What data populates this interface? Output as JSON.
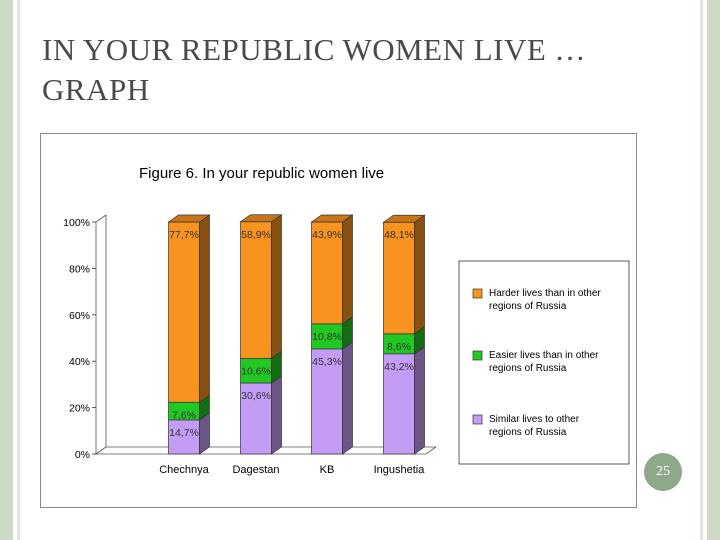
{
  "slide": {
    "title": "IN YOUR REPUBLIC WOMEN LIVE … GRAPH",
    "page_number": "25"
  },
  "colors": {
    "harder": "#f7931e",
    "easier": "#22c822",
    "similar": "#c39cf6",
    "frame": "#8a8a8a",
    "accent_circle": "#8fa78a"
  },
  "chart_data": {
    "type": "bar",
    "stacked": true,
    "percent_stacked": true,
    "three_d": true,
    "title": "Figure 6. In your republic women live",
    "categories": [
      "Chechnya",
      "Dagestan",
      "KB",
      "Ingushetia"
    ],
    "series": [
      {
        "name": "Similar lives to other regions of Russia",
        "color": "#c39cf6",
        "values": [
          14.7,
          30.6,
          45.3,
          43.2
        ],
        "labels": [
          "14,7%",
          "30,6%",
          "45,3%",
          "43,2%"
        ]
      },
      {
        "name": "Easier lives than in other regions of Russia",
        "color": "#22c822",
        "values": [
          7.6,
          10.6,
          10.8,
          8.6
        ],
        "labels": [
          "7,6%",
          "10,6%",
          "10,8%",
          "8,6%"
        ]
      },
      {
        "name": "Harder lives than in other regions of Russia",
        "color": "#f7931e",
        "values": [
          77.7,
          58.9,
          43.9,
          48.1
        ],
        "labels": [
          "77,7%",
          "58,9%",
          "43,9%",
          "48,1%"
        ]
      }
    ],
    "yticks": [
      "0%",
      "20%",
      "40%",
      "60%",
      "80%",
      "100%"
    ],
    "ylim": [
      0,
      100
    ],
    "legend_position": "right"
  }
}
